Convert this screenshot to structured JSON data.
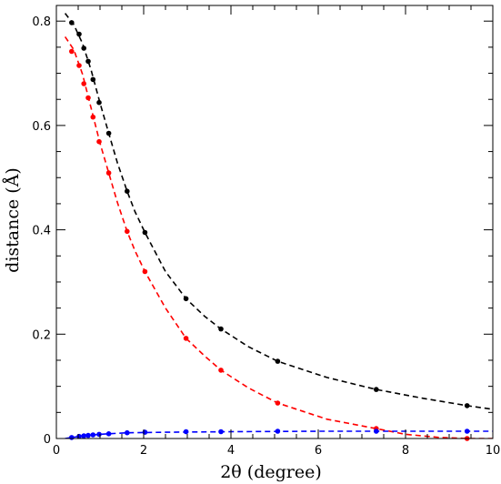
{
  "chart_data": {
    "type": "scatter",
    "title": "",
    "xlabel": "2θ (degree)",
    "ylabel": "distance (Å)",
    "xlim": [
      0,
      10
    ],
    "ylim": [
      0,
      0.83
    ],
    "xticks": [
      0,
      2,
      4,
      6,
      8,
      10
    ],
    "yticks": [
      0,
      0.2,
      0.4,
      0.6,
      0.8
    ],
    "grid": false,
    "legend": "none",
    "series": [
      {
        "color": "#000000",
        "points": [
          {
            "x": 0.35,
            "y": 0.797
          },
          {
            "x": 0.52,
            "y": 0.775
          },
          {
            "x": 0.63,
            "y": 0.748
          },
          {
            "x": 0.73,
            "y": 0.723
          },
          {
            "x": 0.84,
            "y": 0.688
          },
          {
            "x": 0.98,
            "y": 0.644
          },
          {
            "x": 1.2,
            "y": 0.585
          },
          {
            "x": 1.62,
            "y": 0.474
          },
          {
            "x": 2.03,
            "y": 0.395
          },
          {
            "x": 2.97,
            "y": 0.268
          },
          {
            "x": 3.77,
            "y": 0.21
          },
          {
            "x": 5.07,
            "y": 0.148
          },
          {
            "x": 7.33,
            "y": 0.094
          },
          {
            "x": 9.41,
            "y": 0.063
          }
        ],
        "fit": [
          {
            "x": 0.2,
            "y": 0.815
          },
          {
            "x": 0.4,
            "y": 0.793
          },
          {
            "x": 0.6,
            "y": 0.757
          },
          {
            "x": 0.8,
            "y": 0.705
          },
          {
            "x": 1.0,
            "y": 0.643
          },
          {
            "x": 1.2,
            "y": 0.585
          },
          {
            "x": 1.4,
            "y": 0.528
          },
          {
            "x": 1.62,
            "y": 0.474
          },
          {
            "x": 1.8,
            "y": 0.435
          },
          {
            "x": 2.03,
            "y": 0.395
          },
          {
            "x": 2.5,
            "y": 0.32
          },
          {
            "x": 2.97,
            "y": 0.268
          },
          {
            "x": 3.4,
            "y": 0.234
          },
          {
            "x": 3.77,
            "y": 0.21
          },
          {
            "x": 4.4,
            "y": 0.176
          },
          {
            "x": 5.07,
            "y": 0.148
          },
          {
            "x": 6.2,
            "y": 0.117
          },
          {
            "x": 7.33,
            "y": 0.094
          },
          {
            "x": 8.4,
            "y": 0.077
          },
          {
            "x": 9.41,
            "y": 0.063
          },
          {
            "x": 10.0,
            "y": 0.056
          }
        ]
      },
      {
        "color": "#ff0000",
        "points": [
          {
            "x": 0.35,
            "y": 0.742
          },
          {
            "x": 0.52,
            "y": 0.715
          },
          {
            "x": 0.63,
            "y": 0.68
          },
          {
            "x": 0.73,
            "y": 0.653
          },
          {
            "x": 0.84,
            "y": 0.616
          },
          {
            "x": 0.98,
            "y": 0.569
          },
          {
            "x": 1.2,
            "y": 0.509
          },
          {
            "x": 1.62,
            "y": 0.397
          },
          {
            "x": 2.03,
            "y": 0.32
          },
          {
            "x": 2.97,
            "y": 0.192
          },
          {
            "x": 3.77,
            "y": 0.131
          },
          {
            "x": 5.07,
            "y": 0.068
          },
          {
            "x": 7.33,
            "y": 0.019
          },
          {
            "x": 9.41,
            "y": 0.0
          }
        ],
        "fit": [
          {
            "x": 0.2,
            "y": 0.77
          },
          {
            "x": 0.4,
            "y": 0.745
          },
          {
            "x": 0.6,
            "y": 0.698
          },
          {
            "x": 0.8,
            "y": 0.632
          },
          {
            "x": 1.0,
            "y": 0.566
          },
          {
            "x": 1.2,
            "y": 0.509
          },
          {
            "x": 1.4,
            "y": 0.452
          },
          {
            "x": 1.62,
            "y": 0.397
          },
          {
            "x": 1.8,
            "y": 0.36
          },
          {
            "x": 2.03,
            "y": 0.32
          },
          {
            "x": 2.5,
            "y": 0.25
          },
          {
            "x": 2.97,
            "y": 0.192
          },
          {
            "x": 3.4,
            "y": 0.158
          },
          {
            "x": 3.77,
            "y": 0.131
          },
          {
            "x": 4.4,
            "y": 0.097
          },
          {
            "x": 5.07,
            "y": 0.068
          },
          {
            "x": 6.2,
            "y": 0.037
          },
          {
            "x": 7.33,
            "y": 0.019
          },
          {
            "x": 8.0,
            "y": 0.008
          },
          {
            "x": 8.8,
            "y": 0.002
          },
          {
            "x": 9.41,
            "y": 0.0
          },
          {
            "x": 10.0,
            "y": 0.0
          }
        ]
      },
      {
        "color": "#0000ff",
        "points": [
          {
            "x": 0.35,
            "y": 0.002
          },
          {
            "x": 0.52,
            "y": 0.004
          },
          {
            "x": 0.63,
            "y": 0.005
          },
          {
            "x": 0.73,
            "y": 0.006
          },
          {
            "x": 0.84,
            "y": 0.007
          },
          {
            "x": 0.98,
            "y": 0.008
          },
          {
            "x": 1.2,
            "y": 0.009
          },
          {
            "x": 1.62,
            "y": 0.011
          },
          {
            "x": 2.03,
            "y": 0.012
          },
          {
            "x": 2.97,
            "y": 0.013
          },
          {
            "x": 3.77,
            "y": 0.013
          },
          {
            "x": 5.07,
            "y": 0.014
          },
          {
            "x": 7.33,
            "y": 0.014
          },
          {
            "x": 9.41,
            "y": 0.014
          }
        ],
        "fit": [
          {
            "x": 0.2,
            "y": 0.0
          },
          {
            "x": 0.35,
            "y": 0.002
          },
          {
            "x": 0.6,
            "y": 0.005
          },
          {
            "x": 1.0,
            "y": 0.008
          },
          {
            "x": 1.6,
            "y": 0.011
          },
          {
            "x": 2.5,
            "y": 0.012
          },
          {
            "x": 4.0,
            "y": 0.013
          },
          {
            "x": 6.0,
            "y": 0.014
          },
          {
            "x": 8.0,
            "y": 0.014
          },
          {
            "x": 10.0,
            "y": 0.014
          }
        ]
      }
    ]
  }
}
